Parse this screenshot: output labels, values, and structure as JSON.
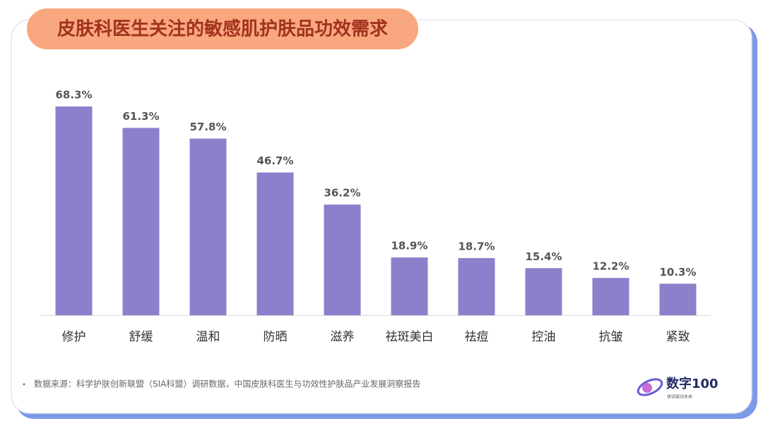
{
  "chart_data": {
    "type": "bar",
    "title": "皮肤科医生关注的敏感肌护肤品功效需求",
    "categories": [
      "修护",
      "舒缓",
      "温和",
      "防晒",
      "滋养",
      "祛斑美白",
      "祛痘",
      "控油",
      "抗皱",
      "紧致"
    ],
    "values": [
      68.3,
      61.3,
      57.8,
      46.7,
      36.2,
      18.9,
      18.7,
      15.4,
      12.2,
      10.3
    ],
    "value_labels": [
      "68.3%",
      "61.3%",
      "57.8%",
      "46.7%",
      "36.2%",
      "18.9%",
      "18.7%",
      "15.4%",
      "12.2%",
      "10.3%"
    ],
    "color": "#8e7fcc",
    "source": "数据来源：科学护肤创新联盟（SIA科盟）调研数据，中国皮肤科医生与功效性护肤品产业发展洞察报告",
    "logo": {
      "name": "数字100",
      "tagline": "体验驱动未来"
    }
  }
}
